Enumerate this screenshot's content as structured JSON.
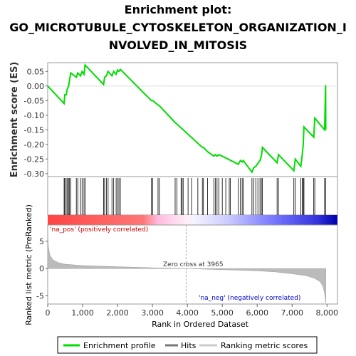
{
  "chart_data": {
    "type": "line",
    "title_lines": [
      "Enrichment plot:",
      "GO_MICROTUBULE_CYTOSKELETON_ORGANIZATION_I",
      "NVOLVED_IN_MITOSIS"
    ],
    "es_panel": {
      "ylabel": "Enrichment score (ES)",
      "ylim": [
        -0.31,
        0.08
      ],
      "yticks": [
        0.05,
        0.0,
        -0.05,
        -0.1,
        -0.15,
        -0.2,
        -0.25,
        -0.3
      ],
      "ytick_labels": [
        "0.05",
        "0.00",
        "-0.05",
        "-0.10",
        "-0.15",
        "-0.20",
        "-0.25",
        "-0.30"
      ],
      "series_color": "#00dd00",
      "points": [
        [
          0,
          0.0
        ],
        [
          470,
          -0.06
        ],
        [
          490,
          -0.03
        ],
        [
          530,
          -0.03
        ],
        [
          560,
          -0.01
        ],
        [
          600,
          0.0
        ],
        [
          625,
          0.02
        ],
        [
          660,
          0.045
        ],
        [
          820,
          0.03
        ],
        [
          860,
          0.045
        ],
        [
          940,
          0.035
        ],
        [
          985,
          0.05
        ],
        [
          1040,
          0.04
        ],
        [
          1070,
          0.072
        ],
        [
          1600,
          0.005
        ],
        [
          1630,
          0.03
        ],
        [
          1680,
          0.035
        ],
        [
          1730,
          0.05
        ],
        [
          1840,
          0.035
        ],
        [
          1890,
          0.05
        ],
        [
          1960,
          0.04
        ],
        [
          2000,
          0.055
        ],
        [
          2040,
          0.05
        ],
        [
          2080,
          0.057
        ],
        [
          2970,
          -0.05
        ],
        [
          3010,
          -0.05
        ],
        [
          3160,
          -0.065
        ],
        [
          3200,
          -0.068
        ],
        [
          3650,
          -0.125
        ],
        [
          3700,
          -0.13
        ],
        [
          4430,
          -0.21
        ],
        [
          4460,
          -0.21
        ],
        [
          4580,
          -0.225
        ],
        [
          4760,
          -0.24
        ],
        [
          4800,
          -0.235
        ],
        [
          4850,
          -0.24
        ],
        [
          4900,
          -0.235
        ],
        [
          5000,
          -0.24
        ],
        [
          5460,
          -0.268
        ],
        [
          5520,
          -0.255
        ],
        [
          5570,
          -0.26
        ],
        [
          5600,
          -0.255
        ],
        [
          5850,
          -0.295
        ],
        [
          5900,
          -0.28
        ],
        [
          5960,
          -0.275
        ],
        [
          6020,
          -0.265
        ],
        [
          6080,
          -0.255
        ],
        [
          6120,
          -0.24
        ],
        [
          6150,
          -0.21
        ],
        [
          6570,
          -0.263
        ],
        [
          6610,
          -0.235
        ],
        [
          7050,
          -0.29
        ],
        [
          7090,
          -0.25
        ],
        [
          7250,
          -0.275
        ],
        [
          7290,
          -0.235
        ],
        [
          7320,
          -0.2
        ],
        [
          7340,
          -0.14
        ],
        [
          7620,
          -0.175
        ],
        [
          7650,
          -0.11
        ],
        [
          7930,
          -0.15
        ],
        [
          7960,
          0.003
        ],
        [
          7965,
          -0.15
        ]
      ]
    },
    "hits": [
      470,
      490,
      530,
      560,
      600,
      625,
      660,
      820,
      860,
      940,
      985,
      1040,
      1070,
      1600,
      1630,
      1680,
      1730,
      1840,
      1890,
      1960,
      2000,
      2040,
      2080,
      2970,
      3010,
      3160,
      3200,
      3650,
      3700,
      3820,
      3850,
      3880,
      4020,
      4120,
      4300,
      4430,
      4460,
      4580,
      4760,
      4800,
      4850,
      4900,
      5000,
      5100,
      5200,
      5230,
      5460,
      5520,
      5570,
      5600,
      5850,
      5900,
      5960,
      6020,
      6080,
      6120,
      6150,
      6570,
      6610,
      7050,
      7090,
      7250,
      7290,
      7320,
      7340,
      7620,
      7650,
      7930,
      7960
    ],
    "ranked_panel": {
      "ylabel": "Ranked list metric (PreRanked)",
      "xlabel": "Rank in Ordered Dataset",
      "ylim": [
        -6.5,
        8
      ],
      "yticks": [
        5,
        0,
        -5
      ],
      "ytick_labels": [
        "5",
        "0",
        "-5"
      ],
      "xlim": [
        0,
        8300
      ],
      "xticks": [
        0,
        1000,
        2000,
        3000,
        4000,
        5000,
        6000,
        7000,
        8000
      ],
      "xtick_labels": [
        "0",
        "1,000",
        "2,000",
        "3,000",
        "4,000",
        "5,000",
        "6,000",
        "7,000",
        "8,000"
      ],
      "zero_cross": 3965,
      "zero_cross_label": "Zero cross at 3965",
      "pos_label": "'na_pos' (positively correlated)",
      "neg_label": "'na_neg' (negatively correlated)",
      "pos_label_color": "#cc0000",
      "neg_label_color": "#0000cc",
      "fill_color": "#bbbbbb",
      "metric_points": [
        [
          0,
          6.5
        ],
        [
          20,
          4.0
        ],
        [
          60,
          2.5
        ],
        [
          150,
          1.6
        ],
        [
          300,
          1.1
        ],
        [
          500,
          0.8
        ],
        [
          1000,
          0.55
        ],
        [
          2000,
          0.35
        ],
        [
          3000,
          0.15
        ],
        [
          3965,
          0.0
        ],
        [
          5000,
          -0.2
        ],
        [
          6000,
          -0.4
        ],
        [
          6500,
          -0.6
        ],
        [
          7000,
          -0.95
        ],
        [
          7400,
          -1.3
        ],
        [
          7650,
          -1.8
        ],
        [
          7800,
          -2.4
        ],
        [
          7880,
          -3.2
        ],
        [
          7930,
          -4.5
        ],
        [
          7965,
          -6.3
        ]
      ]
    },
    "legend": {
      "items": [
        "Enrichment profile",
        "Hits",
        "Ranking metric scores"
      ],
      "colors": [
        "#00dd00",
        "#777777",
        "#cccccc"
      ],
      "placement": "bottom"
    },
    "total_ranks": 7965
  }
}
